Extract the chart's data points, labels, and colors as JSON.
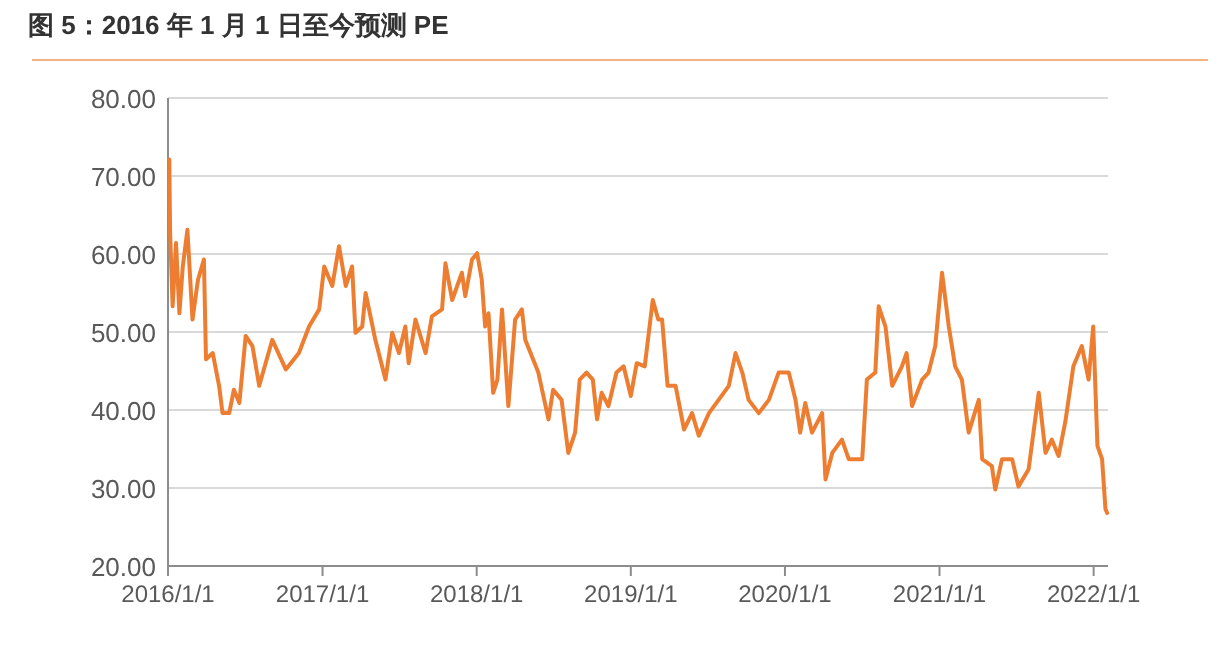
{
  "chart_data": {
    "type": "line",
    "title": "图 5：2016 年 1 月 1 日至今预测 PE",
    "x": [
      "2016-01-04",
      "2016-01-06",
      "2016-01-12",
      "2016-01-20",
      "2016-01-28",
      "2016-02-05",
      "2016-02-16",
      "2016-02-28",
      "2016-03-12",
      "2016-03-26",
      "2016-03-31",
      "2016-04-16",
      "2016-05-01",
      "2016-05-09",
      "2016-05-25",
      "2016-06-05",
      "2016-06-18",
      "2016-07-03",
      "2016-07-19",
      "2016-08-04",
      "2016-09-04",
      "2016-10-06",
      "2016-11-06",
      "2016-11-30",
      "2016-12-24",
      "2017-01-05",
      "2017-01-24",
      "2017-02-09",
      "2017-02-25",
      "2017-03-12",
      "2017-03-20",
      "2017-04-05",
      "2017-04-13",
      "2017-05-06",
      "2017-05-30",
      "2017-06-15",
      "2017-07-01",
      "2017-07-16",
      "2017-07-24",
      "2017-08-09",
      "2017-09-02",
      "2017-09-17",
      "2017-10-11",
      "2017-10-19",
      "2017-11-04",
      "2017-11-27",
      "2017-12-05",
      "2017-12-21",
      "2018-01-02",
      "2018-01-13",
      "2018-01-21",
      "2018-01-29",
      "2018-02-09",
      "2018-02-19",
      "2018-03-02",
      "2018-03-17",
      "2018-04-02",
      "2018-04-18",
      "2018-04-26",
      "2018-05-27",
      "2018-06-20",
      "2018-07-01",
      "2018-07-21",
      "2018-08-06",
      "2018-08-22",
      "2018-09-02",
      "2018-09-18",
      "2018-10-03",
      "2018-10-13",
      "2018-10-24",
      "2018-11-09",
      "2018-11-28",
      "2018-12-15",
      "2019-01-01",
      "2019-01-15",
      "2019-02-03",
      "2019-02-22",
      "2019-03-07",
      "2019-03-16",
      "2019-03-29",
      "2019-04-17",
      "2019-05-07",
      "2019-05-26",
      "2019-06-11",
      "2019-07-05",
      "2019-07-28",
      "2019-08-21",
      "2019-09-06",
      "2019-09-22",
      "2019-10-07",
      "2019-10-31",
      "2019-11-24",
      "2019-12-17",
      "2020-01-10",
      "2020-01-26",
      "2020-02-06",
      "2020-02-18",
      "2020-03-05",
      "2020-03-29",
      "2020-04-06",
      "2020-04-22",
      "2020-05-15",
      "2020-05-31",
      "2020-07-02",
      "2020-07-13",
      "2020-08-02",
      "2020-08-10",
      "2020-08-26",
      "2020-09-11",
      "2020-10-04",
      "2020-10-15",
      "2020-10-28",
      "2020-11-21",
      "2020-12-06",
      "2020-12-22",
      "2021-01-07",
      "2021-01-23",
      "2021-02-07",
      "2021-02-23",
      "2021-03-11",
      "2021-04-04",
      "2021-04-12",
      "2021-05-05",
      "2021-05-13",
      "2021-05-29",
      "2021-06-22",
      "2021-07-07",
      "2021-07-31",
      "2021-08-24",
      "2021-09-09",
      "2021-09-24",
      "2021-10-10",
      "2021-10-26",
      "2021-11-14",
      "2021-12-04",
      "2021-12-20",
      "2021-12-31",
      "2022-01-10",
      "2022-01-21",
      "2022-01-29",
      "2022-02-02"
    ],
    "series": [
      {
        "color": "#ed7d31",
        "values": [
          72.1,
          62.7,
          53.3,
          61.4,
          52.4,
          58.4,
          63.1,
          51.6,
          56.7,
          59.3,
          46.5,
          47.3,
          43.1,
          39.6,
          39.6,
          42.6,
          40.9,
          49.5,
          48.2,
          43.1,
          49.0,
          45.2,
          47.3,
          50.7,
          52.9,
          58.4,
          55.9,
          61.0,
          55.9,
          58.4,
          49.9,
          50.7,
          55.0,
          49.0,
          43.9,
          49.9,
          47.3,
          50.7,
          46.0,
          51.6,
          47.3,
          52.0,
          52.9,
          58.8,
          54.1,
          57.6,
          54.6,
          59.3,
          60.1,
          56.7,
          50.7,
          52.4,
          42.2,
          43.9,
          52.9,
          40.5,
          51.6,
          52.9,
          49.0,
          44.8,
          38.8,
          42.6,
          41.3,
          34.5,
          37.1,
          43.9,
          44.8,
          43.9,
          38.8,
          42.2,
          40.5,
          44.8,
          45.6,
          41.8,
          46.0,
          45.6,
          54.1,
          51.6,
          51.6,
          43.1,
          43.1,
          37.5,
          39.6,
          36.7,
          39.6,
          41.3,
          43.1,
          47.3,
          44.8,
          41.3,
          39.6,
          41.3,
          44.8,
          44.8,
          41.3,
          37.1,
          40.9,
          37.1,
          39.6,
          31.1,
          34.5,
          36.2,
          33.7,
          33.7,
          43.9,
          44.8,
          53.3,
          50.7,
          43.1,
          45.6,
          47.3,
          40.5,
          43.9,
          44.8,
          48.2,
          57.6,
          50.7,
          45.6,
          43.9,
          37.1,
          41.3,
          33.7,
          32.8,
          29.8,
          33.7,
          33.7,
          30.2,
          32.4,
          42.2,
          34.5,
          36.2,
          34.1,
          38.5,
          45.6,
          48.2,
          43.9,
          50.7,
          35.4,
          33.7,
          27.3,
          26.8
        ]
      }
    ],
    "xlim": [
      "2016-01-01",
      "2022-02-04"
    ],
    "xticks": [
      {
        "value": "2016-01-01",
        "label": "2016/1/1"
      },
      {
        "value": "2017-01-01",
        "label": "2017/1/1"
      },
      {
        "value": "2018-01-01",
        "label": "2018/1/1"
      },
      {
        "value": "2019-01-01",
        "label": "2019/1/1"
      },
      {
        "value": "2020-01-01",
        "label": "2020/1/1"
      },
      {
        "value": "2021-01-01",
        "label": "2021/1/1"
      },
      {
        "value": "2022-01-01",
        "label": "2022/1/1"
      }
    ],
    "ylim": [
      20,
      80
    ],
    "yticks": [
      {
        "value": 20,
        "label": "20.00"
      },
      {
        "value": 30,
        "label": "30.00"
      },
      {
        "value": 40,
        "label": "40.00"
      },
      {
        "value": 50,
        "label": "50.00"
      },
      {
        "value": 60,
        "label": "60.00"
      },
      {
        "value": 70,
        "label": "70.00"
      },
      {
        "value": 80,
        "label": "80.00"
      }
    ],
    "grid": "y",
    "marker": "none",
    "line_style": "solid"
  }
}
